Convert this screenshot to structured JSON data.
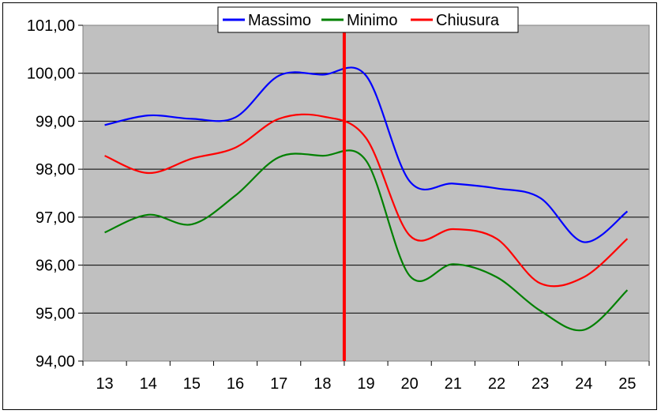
{
  "chart_data": {
    "type": "line",
    "title": "",
    "xlabel": "",
    "ylabel": "",
    "x": [
      "13",
      "14",
      "15",
      "16",
      "17",
      "18",
      "19",
      "20",
      "21",
      "22",
      "23",
      "24",
      "25"
    ],
    "ylim": [
      94,
      101
    ],
    "yticks": [
      "94,00",
      "95,00",
      "96,00",
      "97,00",
      "98,00",
      "99,00",
      "100,00",
      "101,00"
    ],
    "grid": true,
    "plot_background": "#c0c0c0",
    "legend_position": "top-center",
    "series": [
      {
        "name": "Massimo",
        "color": "#0000ff",
        "values": [
          98.92,
          99.12,
          99.05,
          99.08,
          99.95,
          99.97,
          99.95,
          97.75,
          97.7,
          97.6,
          97.4,
          96.48,
          97.12
        ]
      },
      {
        "name": "Minimo",
        "color": "#008000",
        "values": [
          96.68,
          97.05,
          96.85,
          97.45,
          98.25,
          98.28,
          98.18,
          95.78,
          96.02,
          95.75,
          95.05,
          94.65,
          95.48
        ]
      },
      {
        "name": "Chiusura",
        "color": "#ff0000",
        "values": [
          98.28,
          97.92,
          98.22,
          98.45,
          99.05,
          99.1,
          98.65,
          96.62,
          96.75,
          96.55,
          95.62,
          95.75,
          96.55
        ]
      }
    ],
    "marker_line": {
      "after_category": "18",
      "color": "#ff0000"
    }
  }
}
